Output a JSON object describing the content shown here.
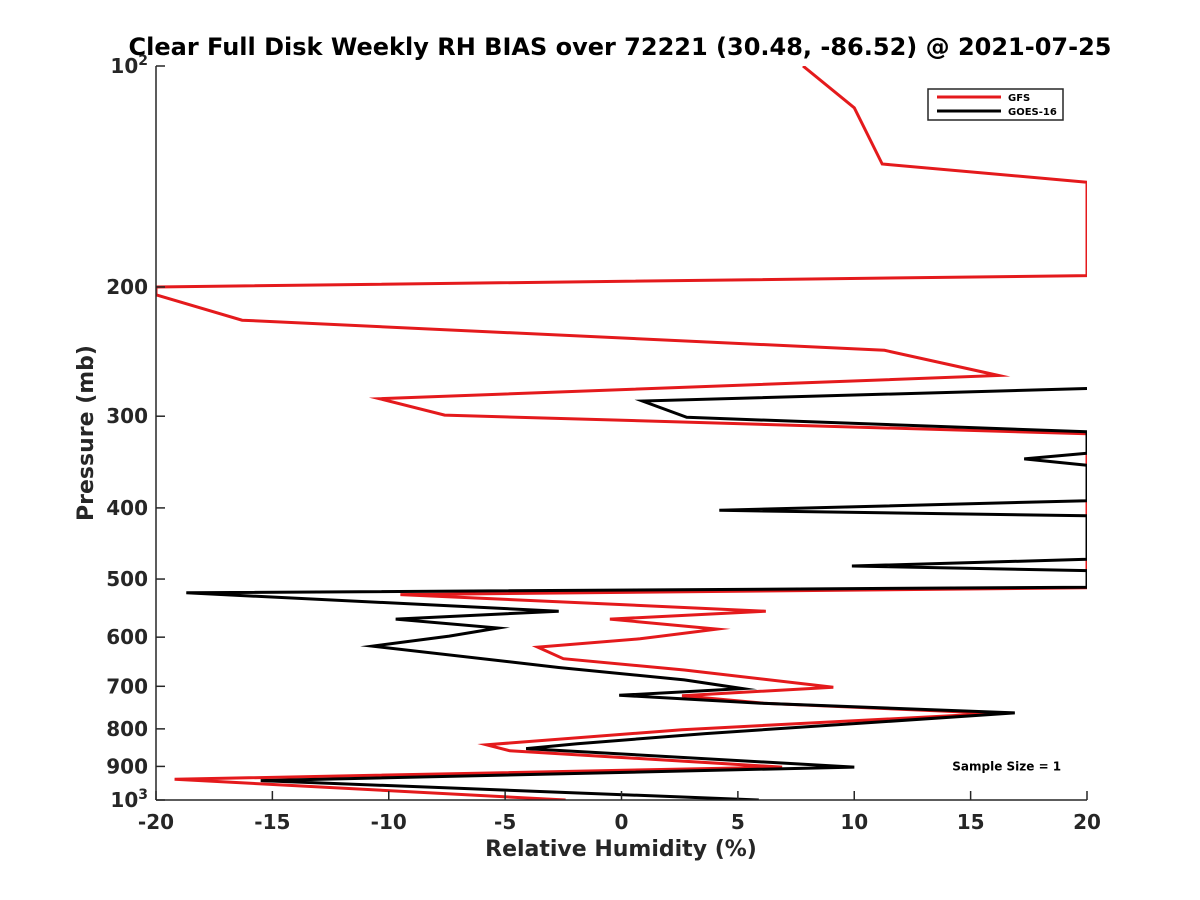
{
  "chart_data": {
    "type": "line",
    "title": "Clear Full Disk Weekly RH BIAS over 72221 (30.48, -86.52) @ 2021-07-25",
    "xlabel": "Relative Humidity (%)",
    "ylabel": "Pressure (mb)",
    "xlim": [
      -20,
      20
    ],
    "ylim": [
      100,
      1000
    ],
    "y_scale": "log",
    "y_reversed": true,
    "grid": false,
    "legend_position": "top-right",
    "x_ticks": [
      {
        "value": -20,
        "label": "-20"
      },
      {
        "value": -15,
        "label": "-15"
      },
      {
        "value": -10,
        "label": "-10"
      },
      {
        "value": -5,
        "label": "-5"
      },
      {
        "value": 0,
        "label": "0"
      },
      {
        "value": 5,
        "label": "5"
      },
      {
        "value": 10,
        "label": "10"
      },
      {
        "value": 15,
        "label": "15"
      },
      {
        "value": 20,
        "label": "20"
      }
    ],
    "y_ticks": [
      {
        "value": 100,
        "base": "10",
        "exp": "2"
      },
      {
        "value": 200,
        "base": "200",
        "exp": ""
      },
      {
        "value": 300,
        "base": "300",
        "exp": ""
      },
      {
        "value": 400,
        "base": "400",
        "exp": ""
      },
      {
        "value": 500,
        "base": "500",
        "exp": ""
      },
      {
        "value": 600,
        "base": "600",
        "exp": ""
      },
      {
        "value": 700,
        "base": "700",
        "exp": ""
      },
      {
        "value": 800,
        "base": "800",
        "exp": ""
      },
      {
        "value": 900,
        "base": "900",
        "exp": ""
      },
      {
        "value": 1000,
        "base": "10",
        "exp": "3"
      }
    ],
    "series": [
      {
        "name": "GFS",
        "color": "#e41a1c",
        "points": [
          {
            "x": 7.8,
            "y": 100
          },
          {
            "x": 10.0,
            "y": 114
          },
          {
            "x": 11.2,
            "y": 136
          },
          {
            "x": 20.0,
            "y": 144
          },
          {
            "x": 20.0,
            "y": 193
          },
          {
            "x": -20.0,
            "y": 200
          },
          {
            "x": -20.0,
            "y": 205
          },
          {
            "x": -16.3,
            "y": 222
          },
          {
            "x": 11.3,
            "y": 244
          },
          {
            "x": 16.2,
            "y": 264
          },
          {
            "x": -10.4,
            "y": 284
          },
          {
            "x": -7.6,
            "y": 299
          },
          {
            "x": 20.0,
            "y": 317
          },
          {
            "x": 20.0,
            "y": 514
          },
          {
            "x": -9.5,
            "y": 525
          },
          {
            "x": 6.2,
            "y": 553
          },
          {
            "x": -0.5,
            "y": 567
          },
          {
            "x": 4.1,
            "y": 585
          },
          {
            "x": 0.8,
            "y": 603
          },
          {
            "x": -3.6,
            "y": 619
          },
          {
            "x": -2.5,
            "y": 642
          },
          {
            "x": 2.7,
            "y": 665
          },
          {
            "x": 9.1,
            "y": 702
          },
          {
            "x": 2.6,
            "y": 721
          },
          {
            "x": 6.1,
            "y": 738
          },
          {
            "x": 16.1,
            "y": 762
          },
          {
            "x": 2.6,
            "y": 802
          },
          {
            "x": -5.8,
            "y": 841
          },
          {
            "x": -4.8,
            "y": 857
          },
          {
            "x": 6.9,
            "y": 902
          },
          {
            "x": -19.2,
            "y": 937
          },
          {
            "x": -2.4,
            "y": 1000
          }
        ]
      },
      {
        "name": "GOES-16",
        "color": "#000000",
        "points": [
          {
            "x": 20.0,
            "y": 275
          },
          {
            "x": 0.9,
            "y": 286
          },
          {
            "x": 2.8,
            "y": 301
          },
          {
            "x": 20.0,
            "y": 315
          },
          {
            "x": 20.0,
            "y": 337
          },
          {
            "x": 17.3,
            "y": 343
          },
          {
            "x": 20.0,
            "y": 350
          },
          {
            "x": 20.0,
            "y": 391
          },
          {
            "x": 4.2,
            "y": 403
          },
          {
            "x": 20.0,
            "y": 410
          },
          {
            "x": 20.0,
            "y": 470
          },
          {
            "x": 9.9,
            "y": 480
          },
          {
            "x": 20.0,
            "y": 487
          },
          {
            "x": 20.0,
            "y": 513
          },
          {
            "x": -18.7,
            "y": 522
          },
          {
            "x": -2.7,
            "y": 553
          },
          {
            "x": -9.7,
            "y": 567
          },
          {
            "x": -5.3,
            "y": 583
          },
          {
            "x": -7.4,
            "y": 598
          },
          {
            "x": -10.7,
            "y": 617
          },
          {
            "x": -2.7,
            "y": 660
          },
          {
            "x": 2.7,
            "y": 686
          },
          {
            "x": 5.2,
            "y": 705
          },
          {
            "x": -0.1,
            "y": 720
          },
          {
            "x": 6.0,
            "y": 738
          },
          {
            "x": 16.9,
            "y": 761
          },
          {
            "x": 3.6,
            "y": 812
          },
          {
            "x": -1.9,
            "y": 838
          },
          {
            "x": -4.1,
            "y": 851
          },
          {
            "x": 10.0,
            "y": 902
          },
          {
            "x": -15.5,
            "y": 941
          },
          {
            "x": 5.9,
            "y": 1000
          }
        ]
      }
    ],
    "annotations": [
      {
        "text": "Sample Size = 1",
        "x": 15.5,
        "y": 900
      }
    ]
  }
}
